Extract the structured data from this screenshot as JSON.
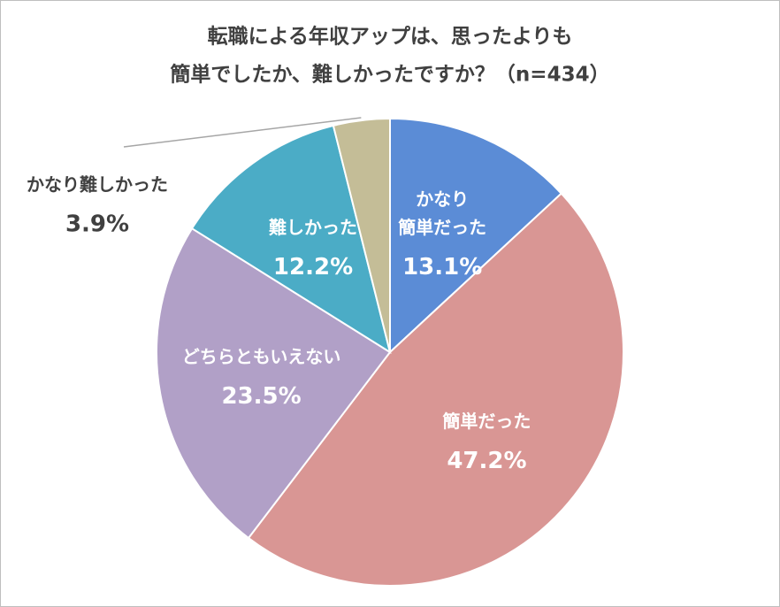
{
  "chart_data": {
    "type": "pie",
    "title": [
      "転職による年収アップは、思ったよりも",
      "簡単でしたか、難しかったですか？（n=434）"
    ],
    "categories": [
      [
        "かなり",
        "簡単だった"
      ],
      [
        "簡単だった"
      ],
      [
        "どちらともいえない"
      ],
      [
        "難しかった"
      ],
      [
        "かなり難しかった"
      ]
    ],
    "values": [
      13.1,
      47.2,
      23.5,
      12.2,
      3.9
    ],
    "value_labels": [
      "13.1%",
      "47.2%",
      "23.5%",
      "12.2%",
      "3.9%"
    ],
    "colors": [
      "#5b8cd6",
      "#d99694",
      "#b1a0c7",
      "#4bacc6",
      "#c4bd97"
    ]
  }
}
